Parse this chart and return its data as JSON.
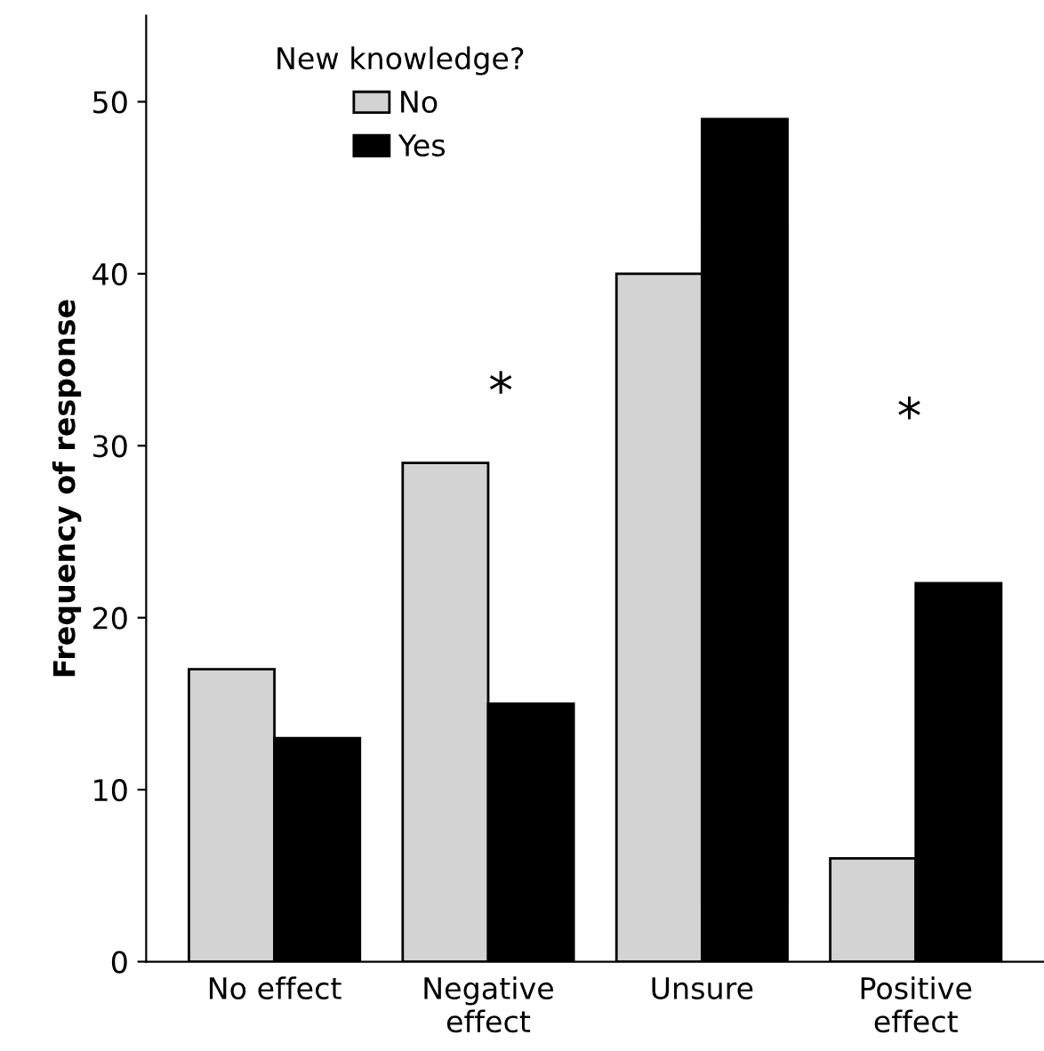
{
  "chart_data": {
    "type": "bar",
    "ylabel": "Frequency of response",
    "legend_title": "New knowledge?",
    "categories": [
      "No effect",
      "Negative\neffect",
      "Unsure",
      "Positive\neffect"
    ],
    "series": [
      {
        "name": "No",
        "color": "#d3d3d3",
        "values": [
          17,
          29,
          40,
          6
        ]
      },
      {
        "name": "Yes",
        "color": "#000000",
        "values": [
          13,
          15,
          49,
          22
        ]
      }
    ],
    "ylim": [
      0,
      55
    ],
    "yticks": [
      0,
      10,
      20,
      30,
      40,
      50
    ],
    "grid": false,
    "legend": "top left",
    "annotations": [
      "*",
      "*"
    ]
  }
}
